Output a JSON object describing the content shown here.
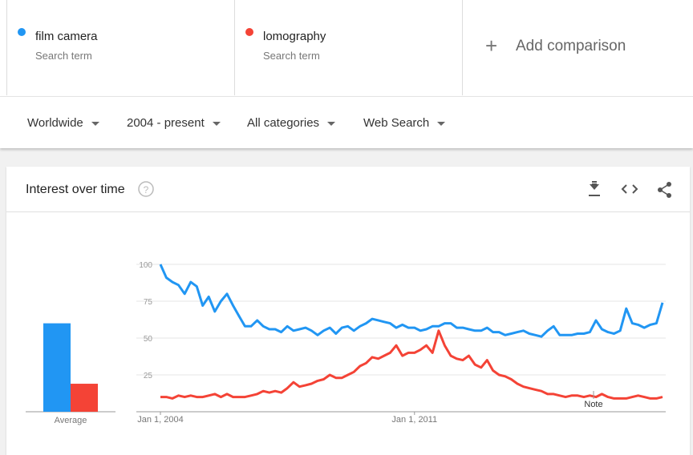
{
  "comparison": {
    "term_label": "Search term",
    "add": "Add comparison"
  },
  "filters": [
    "Worldwide",
    "2004 - present",
    "All categories",
    "Web Search"
  ],
  "card": {
    "title": "Interest over time"
  },
  "chart_data": [
    {
      "type": "bar",
      "xlabel": "Average",
      "ylim": [
        0,
        100
      ],
      "series": [
        {
          "color": "#2196f3",
          "values": [
            60
          ]
        },
        {
          "color": "#f44336",
          "values": [
            19
          ]
        }
      ]
    },
    {
      "type": "line",
      "ylim": [
        0,
        100
      ],
      "yticks": [
        25,
        50,
        75,
        100
      ],
      "grid": true,
      "xlim": [
        "2004-01-01",
        "2017-11-01"
      ],
      "xticks": [
        {
          "value": "2004-01-01",
          "label": "Jan 1, 2004"
        },
        {
          "value": "2011-01-01",
          "label": "Jan 1, 2011"
        }
      ],
      "annotation": "Note",
      "x": [
        "2004-01-01",
        "2004-03-01",
        "2004-05-01",
        "2004-07-01",
        "2004-09-01",
        "2004-11-01",
        "2005-01-01",
        "2005-03-01",
        "2005-05-01",
        "2005-07-01",
        "2005-09-01",
        "2005-11-01",
        "2006-01-01",
        "2006-03-01",
        "2006-05-01",
        "2006-07-01",
        "2006-09-01",
        "2006-11-01",
        "2007-01-01",
        "2007-03-01",
        "2007-05-01",
        "2007-07-01",
        "2007-09-01",
        "2007-11-01",
        "2008-01-01",
        "2008-03-01",
        "2008-05-01",
        "2008-07-01",
        "2008-09-01",
        "2008-11-01",
        "2009-01-01",
        "2009-03-01",
        "2009-05-01",
        "2009-07-01",
        "2009-09-01",
        "2009-11-01",
        "2010-01-01",
        "2010-03-01",
        "2010-05-01",
        "2010-07-01",
        "2010-09-01",
        "2010-11-01",
        "2011-01-01",
        "2011-03-01",
        "2011-05-01",
        "2011-07-01",
        "2011-09-01",
        "2011-11-01",
        "2012-01-01",
        "2012-03-01",
        "2012-05-01",
        "2012-07-01",
        "2012-09-01",
        "2012-11-01",
        "2013-01-01",
        "2013-03-01",
        "2013-05-01",
        "2013-07-01",
        "2013-09-01",
        "2013-11-01",
        "2014-01-01",
        "2014-03-01",
        "2014-05-01",
        "2014-07-01",
        "2014-09-01",
        "2014-11-01",
        "2015-01-01",
        "2015-03-01",
        "2015-05-01",
        "2015-07-01",
        "2015-09-01",
        "2015-11-01",
        "2016-01-01",
        "2016-03-01",
        "2016-05-01",
        "2016-07-01",
        "2016-09-01",
        "2016-11-01",
        "2017-01-01",
        "2017-03-01",
        "2017-05-01",
        "2017-07-01",
        "2017-09-01",
        "2017-11-01"
      ],
      "series": [
        {
          "name": "film camera",
          "color": "#2196f3",
          "values": [
            100,
            91,
            88,
            86,
            80,
            88,
            85,
            72,
            78,
            68,
            75,
            80,
            72,
            65,
            58,
            58,
            62,
            58,
            56,
            56,
            54,
            58,
            55,
            56,
            57,
            55,
            52,
            55,
            57,
            53,
            57,
            58,
            55,
            58,
            60,
            63,
            62,
            61,
            60,
            57,
            59,
            57,
            57,
            55,
            56,
            58,
            58,
            60,
            60,
            57,
            57,
            56,
            55,
            55,
            57,
            54,
            54,
            52,
            53,
            54,
            55,
            53,
            52,
            51,
            55,
            58,
            52,
            52,
            52,
            53,
            53,
            54,
            62,
            56,
            54,
            53,
            55,
            70,
            60,
            59,
            57,
            59,
            60,
            74
          ]
        },
        {
          "name": "lomography",
          "color": "#f44336",
          "values": [
            10,
            10,
            9,
            11,
            10,
            11,
            10,
            10,
            11,
            12,
            10,
            12,
            10,
            10,
            10,
            11,
            12,
            14,
            13,
            14,
            13,
            16,
            20,
            17,
            18,
            19,
            21,
            22,
            25,
            23,
            23,
            25,
            27,
            31,
            33,
            37,
            36,
            38,
            40,
            45,
            38,
            40,
            40,
            42,
            45,
            40,
            55,
            45,
            38,
            36,
            35,
            38,
            32,
            30,
            35,
            28,
            25,
            24,
            22,
            19,
            17,
            16,
            15,
            14,
            12,
            12,
            11,
            10,
            11,
            11,
            10,
            11,
            10,
            12,
            10,
            9,
            9,
            9,
            10,
            11,
            10,
            9,
            9,
            10
          ]
        }
      ]
    }
  ]
}
